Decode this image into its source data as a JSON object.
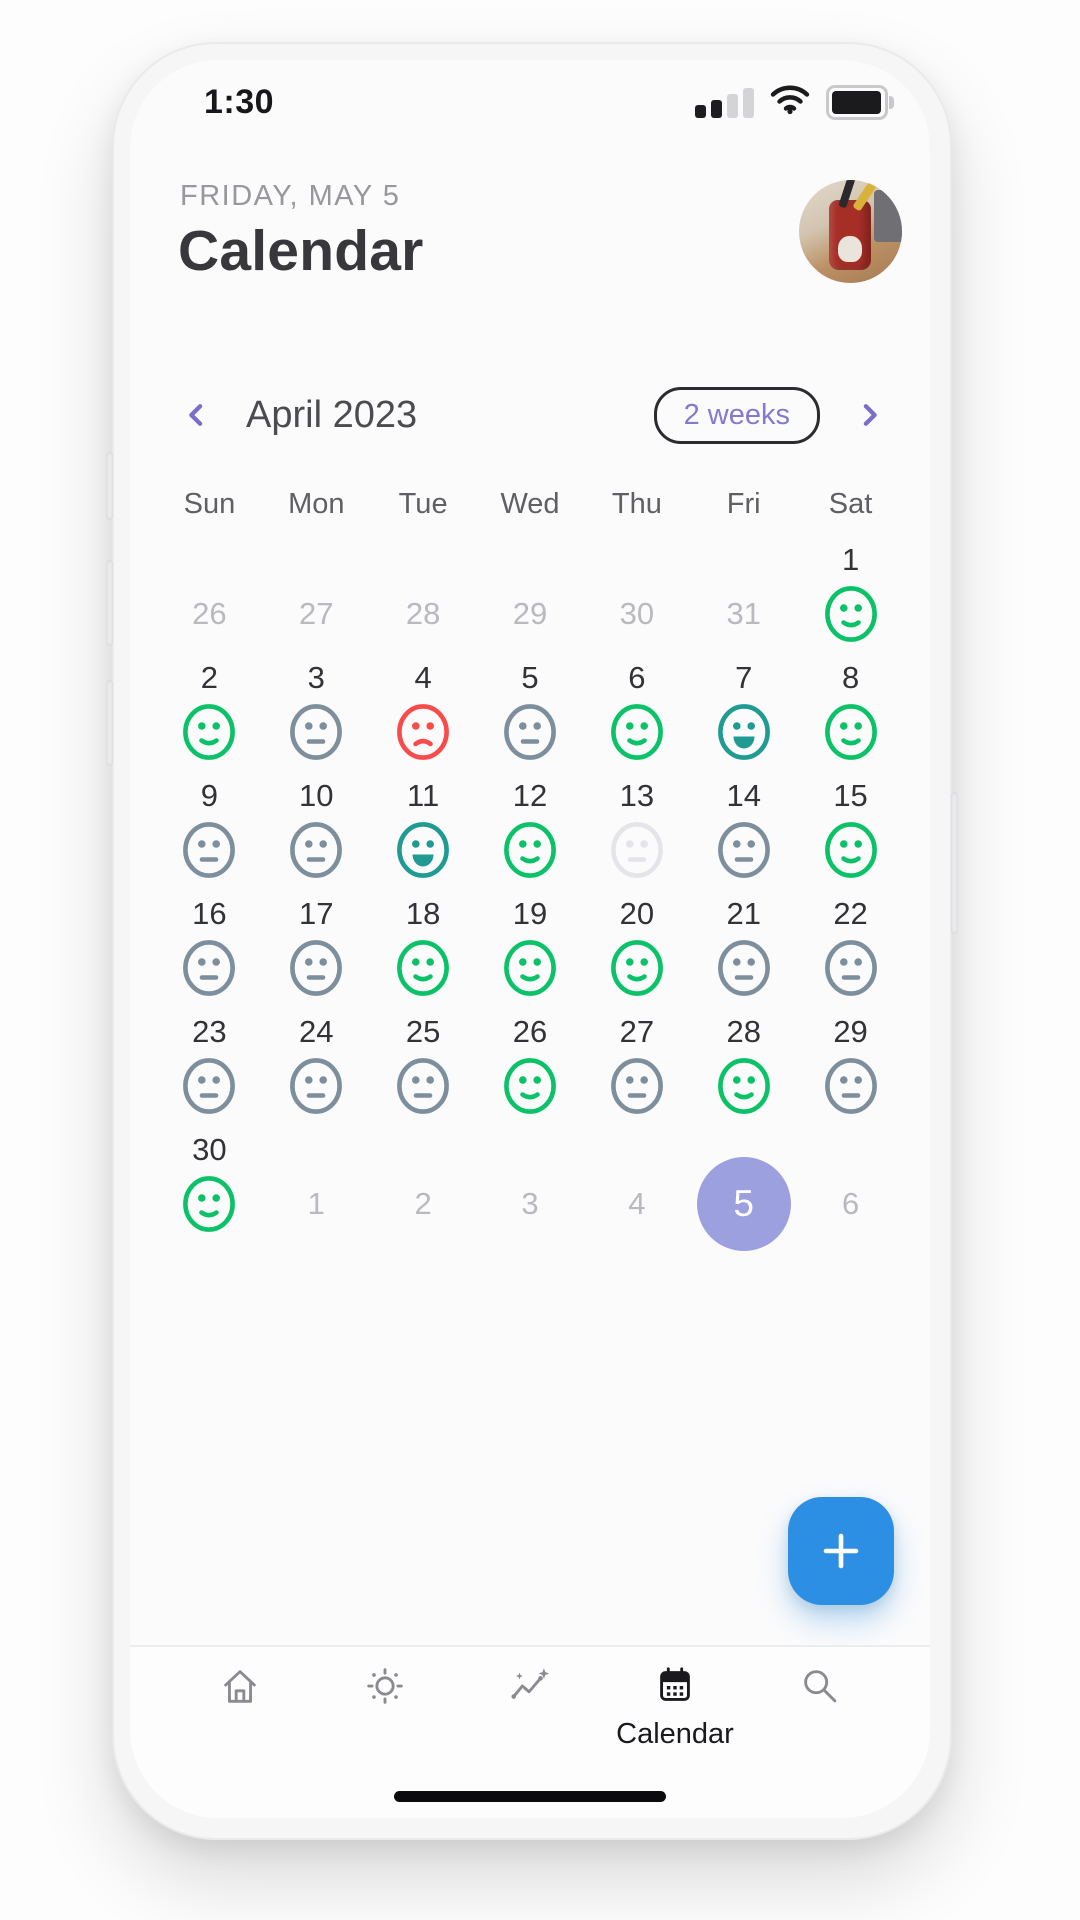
{
  "status_bar": {
    "time": "1:30",
    "signal_bars_filled": 2,
    "signal_bars_total": 4,
    "icons": [
      "cellular-signal-icon",
      "wifi-icon",
      "battery-icon"
    ]
  },
  "header": {
    "date_kicker": "FRIDAY, MAY 5",
    "title": "Calendar",
    "avatar": "profile-photo-red-pencil-cup"
  },
  "month_nav": {
    "month_label": "April 2023",
    "range_toggle_label": "2 weeks",
    "prev_icon": "chevron-left-icon",
    "next_icon": "chevron-right-icon"
  },
  "weekdays": [
    "Sun",
    "Mon",
    "Tue",
    "Wed",
    "Thu",
    "Fri",
    "Sat"
  ],
  "mood_styles": {
    "happy": {
      "color": "#0cc268",
      "mouth": "smile"
    },
    "neutral": {
      "color": "#7d8e9c",
      "mouth": "flat"
    },
    "sad": {
      "color": "#fa4b4b",
      "mouth": "frown"
    },
    "excited": {
      "color": "#1f9b94",
      "mouth": "grin"
    },
    "faded": {
      "color": "#e5e5e9",
      "mouth": "flat"
    }
  },
  "calendar": {
    "weeks": [
      [
        {
          "day": 26,
          "in_month": false
        },
        {
          "day": 27,
          "in_month": false
        },
        {
          "day": 28,
          "in_month": false
        },
        {
          "day": 29,
          "in_month": false
        },
        {
          "day": 30,
          "in_month": false
        },
        {
          "day": 31,
          "in_month": false
        },
        {
          "day": 1,
          "in_month": true,
          "mood": "happy"
        }
      ],
      [
        {
          "day": 2,
          "in_month": true,
          "mood": "happy"
        },
        {
          "day": 3,
          "in_month": true,
          "mood": "neutral"
        },
        {
          "day": 4,
          "in_month": true,
          "mood": "sad"
        },
        {
          "day": 5,
          "in_month": true,
          "mood": "neutral"
        },
        {
          "day": 6,
          "in_month": true,
          "mood": "happy"
        },
        {
          "day": 7,
          "in_month": true,
          "mood": "excited"
        },
        {
          "day": 8,
          "in_month": true,
          "mood": "happy"
        }
      ],
      [
        {
          "day": 9,
          "in_month": true,
          "mood": "neutral"
        },
        {
          "day": 10,
          "in_month": true,
          "mood": "neutral"
        },
        {
          "day": 11,
          "in_month": true,
          "mood": "excited"
        },
        {
          "day": 12,
          "in_month": true,
          "mood": "happy"
        },
        {
          "day": 13,
          "in_month": true,
          "mood": "faded"
        },
        {
          "day": 14,
          "in_month": true,
          "mood": "neutral"
        },
        {
          "day": 15,
          "in_month": true,
          "mood": "happy"
        }
      ],
      [
        {
          "day": 16,
          "in_month": true,
          "mood": "neutral"
        },
        {
          "day": 17,
          "in_month": true,
          "mood": "neutral"
        },
        {
          "day": 18,
          "in_month": true,
          "mood": "happy"
        },
        {
          "day": 19,
          "in_month": true,
          "mood": "happy"
        },
        {
          "day": 20,
          "in_month": true,
          "mood": "happy"
        },
        {
          "day": 21,
          "in_month": true,
          "mood": "neutral"
        },
        {
          "day": 22,
          "in_month": true,
          "mood": "neutral"
        }
      ],
      [
        {
          "day": 23,
          "in_month": true,
          "mood": "neutral"
        },
        {
          "day": 24,
          "in_month": true,
          "mood": "neutral"
        },
        {
          "day": 25,
          "in_month": true,
          "mood": "neutral"
        },
        {
          "day": 26,
          "in_month": true,
          "mood": "happy"
        },
        {
          "day": 27,
          "in_month": true,
          "mood": "neutral"
        },
        {
          "day": 28,
          "in_month": true,
          "mood": "happy"
        },
        {
          "day": 29,
          "in_month": true,
          "mood": "neutral"
        }
      ],
      [
        {
          "day": 30,
          "in_month": true,
          "mood": "happy"
        },
        {
          "day": 1,
          "in_month": false
        },
        {
          "day": 2,
          "in_month": false
        },
        {
          "day": 3,
          "in_month": false
        },
        {
          "day": 4,
          "in_month": false
        },
        {
          "day": 5,
          "in_month": false,
          "is_today": true
        },
        {
          "day": 6,
          "in_month": false
        }
      ]
    ]
  },
  "fab": {
    "icon": "plus-icon"
  },
  "tab_bar": {
    "items": [
      {
        "name": "home",
        "icon": "home-icon",
        "label": "",
        "active": false
      },
      {
        "name": "weather",
        "icon": "sun-icon",
        "label": "",
        "active": false
      },
      {
        "name": "trends",
        "icon": "trend-sparkline-icon",
        "label": "",
        "active": false
      },
      {
        "name": "calendar",
        "icon": "calendar-icon",
        "label": "Calendar",
        "active": true
      },
      {
        "name": "search",
        "icon": "search-icon",
        "label": "",
        "active": false
      }
    ]
  },
  "colors": {
    "accent_purple": "#7a6ec9",
    "pill_text": "#837acf",
    "fab_blue": "#2d8fe4",
    "today_circle": "#9da0de",
    "mood_happy_green": "#0cc268",
    "mood_neutral_slate": "#7d8e9c",
    "mood_sad_red": "#fa4b4b",
    "mood_excited_teal": "#1f9b94",
    "mood_faded_gray": "#e5e5e9",
    "tab_active": "#1a1a1e",
    "tab_inactive": "#8a8a90"
  }
}
